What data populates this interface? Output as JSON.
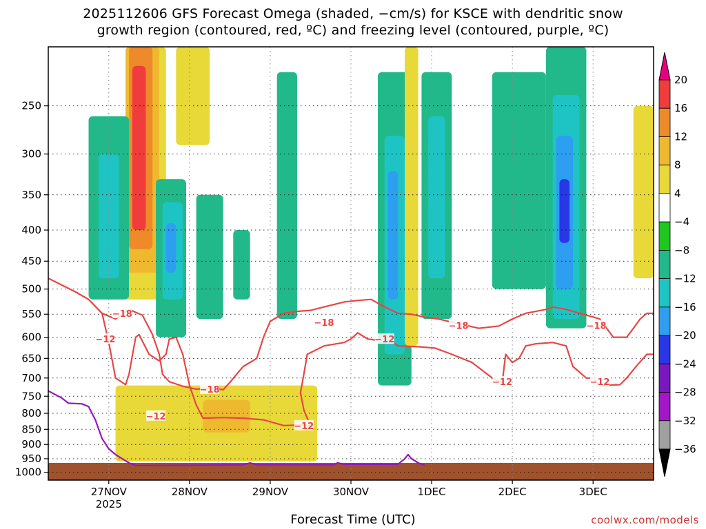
{
  "chart_data": {
    "type": "heatmap",
    "title_line1": "2025112606 GFS Forecast Omega (shaded, −cm/s) for KSCE with dendritic snow",
    "title_line2": "growth region (contoured, red, ºC) and freezing level (contoured, purple, ºC)",
    "xlabel": "Forecast Time (UTC)",
    "credit": "coolwx.com/models",
    "x_ticks": [
      {
        "label": "27NOV",
        "sublabel": "2025",
        "hour": 18
      },
      {
        "label": "28NOV",
        "sublabel": "",
        "hour": 42
      },
      {
        "label": "29NOV",
        "sublabel": "",
        "hour": 66
      },
      {
        "label": "30NOV",
        "sublabel": "",
        "hour": 90
      },
      {
        "label": "1DEC",
        "sublabel": "",
        "hour": 114
      },
      {
        "label": "2DEC",
        "sublabel": "",
        "hour": 138
      },
      {
        "label": "3DEC",
        "sublabel": "",
        "hour": 162
      }
    ],
    "xlim_hours": [
      0,
      180
    ],
    "y_ticks": [
      250,
      300,
      350,
      400,
      450,
      500,
      550,
      600,
      650,
      700,
      750,
      800,
      850,
      900,
      950,
      1000
    ],
    "ylim_hpa": [
      200,
      1030
    ],
    "y_scale": "log-pressure",
    "grid": true,
    "colorbar": {
      "labels": [
        "20",
        "16",
        "12",
        "8",
        "4",
        "−4",
        "−8",
        "−12",
        "−16",
        "−20",
        "−24",
        "−28",
        "−32",
        "−36"
      ],
      "colors": [
        "#e6007e",
        "#f03c3c",
        "#ee8a2a",
        "#efb92f",
        "#e8d838",
        "#ffffff",
        "#1ec81e",
        "#22b98a",
        "#1ec4c4",
        "#2e9ef0",
        "#2838e6",
        "#7a18c0",
        "#a416c8",
        "#a0a0a0",
        "#000000"
      ]
    },
    "contour_labels": [
      {
        "text": "−18",
        "hour": 22,
        "p": 548
      },
      {
        "text": "−12",
        "hour": 17,
        "p": 604
      },
      {
        "text": "−18",
        "hour": 48,
        "p": 730
      },
      {
        "text": "−12",
        "hour": 32,
        "p": 808
      },
      {
        "text": "−12",
        "hour": 76,
        "p": 838
      },
      {
        "text": "−18",
        "hour": 82,
        "p": 567
      },
      {
        "text": "−12",
        "hour": 100,
        "p": 604
      },
      {
        "text": "−18",
        "hour": 122,
        "p": 574
      },
      {
        "text": "−12",
        "hour": 135,
        "p": 710
      },
      {
        "text": "−18",
        "hour": 163,
        "p": 574
      },
      {
        "text": "−12",
        "hour": 164,
        "p": 710
      }
    ],
    "dendritic_minus12": [
      [
        0,
        480
      ],
      [
        8,
        505
      ],
      [
        12,
        520
      ],
      [
        16,
        548
      ],
      [
        18,
        612
      ],
      [
        20,
        700
      ],
      [
        23,
        718
      ],
      [
        24,
        690
      ],
      [
        26,
        600
      ],
      [
        27,
        594
      ],
      [
        30,
        640
      ],
      [
        33,
        656
      ],
      [
        35,
        640
      ],
      [
        36,
        604
      ],
      [
        38,
        600
      ],
      [
        40,
        640
      ],
      [
        42,
        720
      ],
      [
        44,
        775
      ],
      [
        46,
        815
      ],
      [
        52,
        813
      ],
      [
        58,
        815
      ],
      [
        64,
        820
      ],
      [
        70,
        838
      ],
      [
        76,
        836
      ],
      [
        78,
        840
      ],
      [
        76,
        790
      ],
      [
        75,
        740
      ],
      [
        76,
        690
      ],
      [
        77,
        640
      ],
      [
        82,
        620
      ],
      [
        88,
        612
      ],
      [
        90,
        604
      ],
      [
        92,
        590
      ],
      [
        95,
        604
      ],
      [
        98,
        607
      ],
      [
        100,
        598
      ],
      [
        104,
        620
      ],
      [
        110,
        622
      ],
      [
        115,
        625
      ],
      [
        120,
        640
      ],
      [
        126,
        660
      ],
      [
        132,
        700
      ],
      [
        135,
        712
      ],
      [
        136,
        640
      ],
      [
        138,
        660
      ],
      [
        140,
        650
      ],
      [
        142,
        620
      ],
      [
        145,
        615
      ],
      [
        150,
        612
      ],
      [
        154,
        620
      ],
      [
        156,
        670
      ],
      [
        160,
        700
      ],
      [
        162,
        700
      ],
      [
        164,
        720
      ],
      [
        170,
        718
      ],
      [
        172,
        700
      ],
      [
        175,
        668
      ],
      [
        178,
        640
      ],
      [
        180,
        640
      ]
    ],
    "dendritic_minus18": [
      [
        16,
        548
      ],
      [
        20,
        560
      ],
      [
        24,
        540
      ],
      [
        28,
        552
      ],
      [
        31,
        594
      ],
      [
        33,
        640
      ],
      [
        34,
        690
      ],
      [
        36,
        710
      ],
      [
        40,
        722
      ],
      [
        44,
        730
      ],
      [
        50,
        728
      ],
      [
        52,
        732
      ],
      [
        54,
        712
      ],
      [
        56,
        690
      ],
      [
        58,
        670
      ],
      [
        62,
        650
      ],
      [
        64,
        600
      ],
      [
        66,
        565
      ],
      [
        70,
        548
      ],
      [
        74,
        544
      ],
      [
        78,
        542
      ],
      [
        82,
        535
      ],
      [
        88,
        525
      ],
      [
        92,
        522
      ],
      [
        96,
        520
      ],
      [
        100,
        535
      ],
      [
        104,
        548
      ],
      [
        108,
        550
      ],
      [
        112,
        556
      ],
      [
        116,
        560
      ],
      [
        122,
        570
      ],
      [
        128,
        580
      ],
      [
        134,
        575
      ],
      [
        138,
        560
      ],
      [
        142,
        548
      ],
      [
        148,
        540
      ],
      [
        150,
        535
      ],
      [
        154,
        540
      ],
      [
        158,
        548
      ],
      [
        164,
        560
      ],
      [
        168,
        600
      ],
      [
        172,
        600
      ],
      [
        174,
        580
      ],
      [
        176,
        560
      ],
      [
        178,
        548
      ],
      [
        180,
        548
      ]
    ],
    "freezing_level_0c": [
      [
        0,
        735
      ],
      [
        4,
        755
      ],
      [
        6,
        770
      ],
      [
        10,
        772
      ],
      [
        12,
        780
      ],
      [
        13,
        800
      ],
      [
        14,
        820
      ],
      [
        16,
        880
      ],
      [
        18,
        915
      ],
      [
        20,
        935
      ],
      [
        22,
        950
      ],
      [
        24,
        965
      ],
      [
        26,
        975
      ],
      [
        30,
        975
      ],
      [
        58,
        972
      ],
      [
        60,
        965
      ],
      [
        62,
        972
      ],
      [
        85,
        972
      ],
      [
        86,
        965
      ],
      [
        88,
        970
      ],
      [
        104,
        970
      ],
      [
        106,
        950
      ],
      [
        107,
        935
      ],
      [
        108,
        950
      ],
      [
        110,
        965
      ],
      [
        112,
        975
      ]
    ],
    "terrain_top_hpa": 965,
    "omega_cells": [
      {
        "h": [
          23,
          35
        ],
        "p": [
          200,
          520
        ],
        "v": 6
      },
      {
        "h": [
          23,
          33
        ],
        "p": [
          200,
          470
        ],
        "v": 10
      },
      {
        "h": [
          24,
          31
        ],
        "p": [
          200,
          430
        ],
        "v": 14
      },
      {
        "h": [
          25,
          29
        ],
        "p": [
          215,
          400
        ],
        "v": 18
      },
      {
        "h": [
          38,
          48
        ],
        "p": [
          200,
          290
        ],
        "v": 6
      },
      {
        "h": [
          12,
          24
        ],
        "p": [
          260,
          520
        ],
        "v": -8
      },
      {
        "h": [
          15,
          21
        ],
        "p": [
          300,
          480
        ],
        "v": -12
      },
      {
        "h": [
          32,
          41
        ],
        "p": [
          330,
          600
        ],
        "v": -8
      },
      {
        "h": [
          34,
          40
        ],
        "p": [
          360,
          520
        ],
        "v": -12
      },
      {
        "h": [
          35,
          38
        ],
        "p": [
          390,
          470
        ],
        "v": -16
      },
      {
        "h": [
          44,
          52
        ],
        "p": [
          350,
          560
        ],
        "v": -8
      },
      {
        "h": [
          55,
          60
        ],
        "p": [
          400,
          520
        ],
        "v": -10
      },
      {
        "h": [
          68,
          74
        ],
        "p": [
          220,
          560
        ],
        "v": -8
      },
      {
        "h": [
          98,
          108
        ],
        "p": [
          220,
          720
        ],
        "v": -8
      },
      {
        "h": [
          100,
          106
        ],
        "p": [
          280,
          640
        ],
        "v": -12
      },
      {
        "h": [
          101,
          104
        ],
        "p": [
          320,
          520
        ],
        "v": -16
      },
      {
        "h": [
          106,
          110
        ],
        "p": [
          200,
          620
        ],
        "v": 6
      },
      {
        "h": [
          111,
          120
        ],
        "p": [
          220,
          560
        ],
        "v": -8
      },
      {
        "h": [
          113,
          118
        ],
        "p": [
          260,
          480
        ],
        "v": -12
      },
      {
        "h": [
          132,
          148
        ],
        "p": [
          220,
          500
        ],
        "v": -8
      },
      {
        "h": [
          148,
          160
        ],
        "p": [
          200,
          580
        ],
        "v": -8
      },
      {
        "h": [
          150,
          158
        ],
        "p": [
          240,
          560
        ],
        "v": -12
      },
      {
        "h": [
          151,
          156
        ],
        "p": [
          280,
          500
        ],
        "v": -16
      },
      {
        "h": [
          152,
          155
        ],
        "p": [
          330,
          420
        ],
        "v": -20
      },
      {
        "h": [
          20,
          80
        ],
        "p": [
          720,
          960
        ],
        "v": 5
      },
      {
        "h": [
          46,
          60
        ],
        "p": [
          760,
          860
        ],
        "v": 8
      },
      {
        "h": [
          174,
          180
        ],
        "p": [
          250,
          480
        ],
        "v": 6
      }
    ]
  }
}
